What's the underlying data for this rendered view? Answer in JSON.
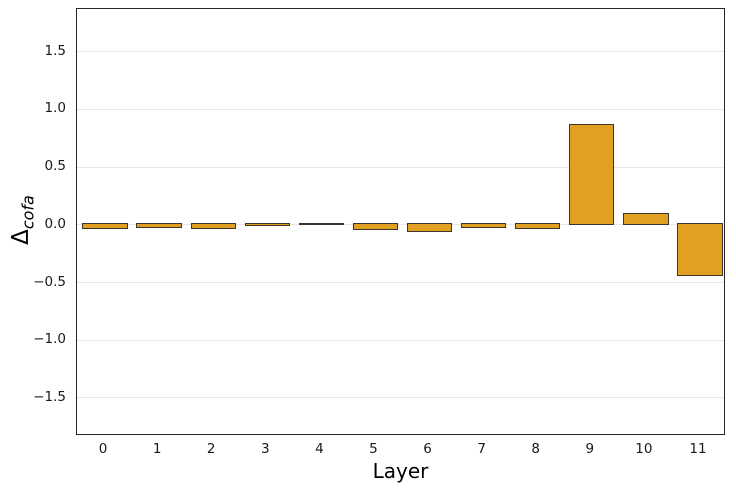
{
  "figure": {
    "background": "#ffffff",
    "bar_color": "#E1A021",
    "bar_edge_color": "#3B352C",
    "grid_color": "#e7e7e7",
    "spine_color": "#262626",
    "xlabel": "Layer",
    "ylabel_symbol": "Δ",
    "ylabel_subscript": "cofa"
  },
  "chart_data": {
    "type": "bar",
    "title": "",
    "xlabel": "Layer",
    "ylabel": "Δ_cofa",
    "categories": [
      "0",
      "1",
      "2",
      "3",
      "4",
      "5",
      "6",
      "7",
      "8",
      "9",
      "10",
      "11"
    ],
    "values": [
      -0.03,
      -0.02,
      -0.03,
      -0.01,
      0.005,
      -0.04,
      -0.06,
      -0.02,
      -0.03,
      0.86,
      0.09,
      -0.44
    ],
    "ylim": [
      -1.83,
      1.87
    ],
    "yticks": [
      1.5,
      1.0,
      0.5,
      0.0,
      -0.5,
      -1.0,
      -1.5
    ],
    "ytick_labels": [
      "1.5",
      "1.0",
      "0.5",
      "0.0",
      "−0.5",
      "−1.0",
      "−1.5"
    ],
    "grid": "horizontal-only",
    "legend": null,
    "bar_width_fraction": 0.8
  }
}
